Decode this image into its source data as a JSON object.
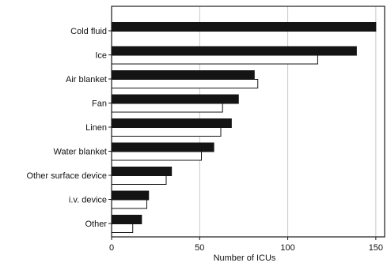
{
  "chart_data": {
    "type": "bar",
    "orientation": "horizontal",
    "categories": [
      "Cold fluid",
      "Ice",
      "Air blanket",
      "Fan",
      "Linen",
      "Water blanket",
      "Other surface device",
      "i.v. device",
      "Other"
    ],
    "series": [
      {
        "color": "#141414",
        "values": [
          150,
          139,
          81,
          72,
          68,
          58,
          34,
          21,
          17
        ]
      },
      {
        "color": "#ffffff",
        "values": [
          null,
          117,
          83,
          63,
          62,
          51,
          31,
          20,
          12
        ]
      }
    ],
    "xlabel": "Number of ICUs",
    "ylabel": "",
    "xlim": [
      0,
      155
    ],
    "xticks": [
      0,
      50,
      100,
      150
    ],
    "grid": "vertical"
  }
}
